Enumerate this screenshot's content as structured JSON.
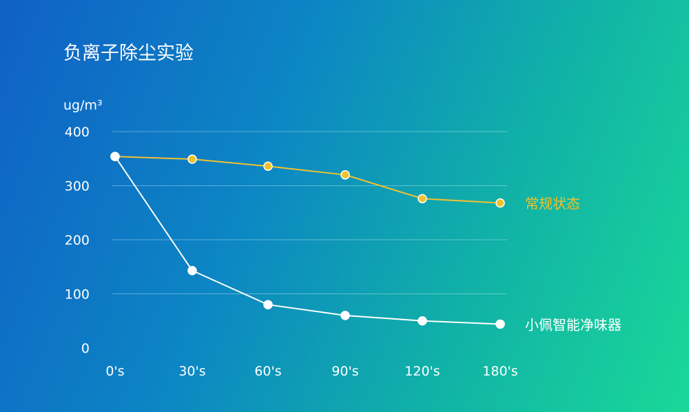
{
  "chart_data": {
    "type": "line",
    "title": "负离子除尘实验",
    "ylabel": "ug/m³",
    "categories": [
      "0's",
      "30's",
      "60's",
      "90's",
      "120's",
      "180's"
    ],
    "ylim": [
      0,
      400
    ],
    "yticks": [
      0,
      100,
      200,
      300,
      400
    ],
    "grid": true,
    "series": [
      {
        "name": "常规状态",
        "color": "#f2c12e",
        "values": [
          354,
          349,
          336,
          320,
          276,
          268
        ]
      },
      {
        "name": "小佩智能净味器",
        "color": "#ffffff",
        "values": [
          354,
          143,
          80,
          60,
          50,
          44
        ]
      }
    ]
  }
}
